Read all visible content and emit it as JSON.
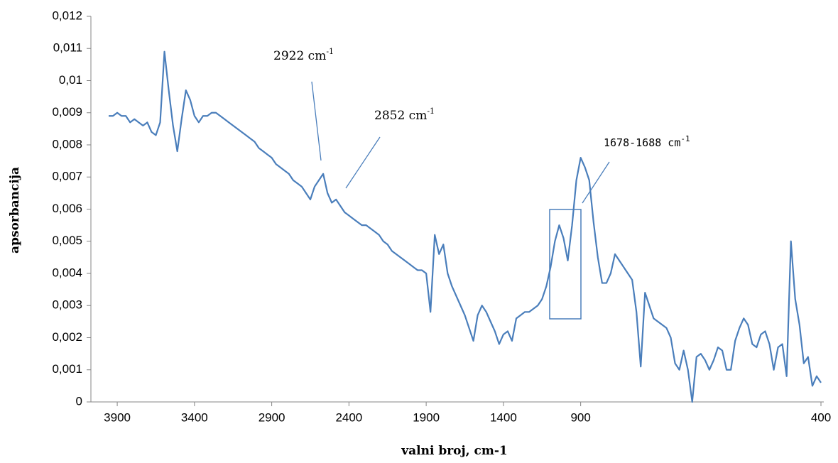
{
  "chart_data": {
    "type": "line",
    "xlabel": "valni broj, cm-1",
    "ylabel": "apsorbancija",
    "annotations": [
      {
        "text": "2922 cm",
        "sup": "-1"
      },
      {
        "text": "2852 cm",
        "sup": "-1"
      },
      {
        "text": "1678-1688 cm",
        "sup": "-1"
      }
    ],
    "categories": [
      null,
      null,
      "3900",
      null,
      null,
      null,
      null,
      null,
      null,
      null,
      null,
      null,
      null,
      null,
      null,
      null,
      null,
      null,
      null,
      null,
      "3400",
      null,
      null,
      null,
      null,
      null,
      null,
      null,
      null,
      null,
      null,
      null,
      null,
      null,
      null,
      null,
      null,
      null,
      "2900",
      null,
      null,
      null,
      null,
      null,
      null,
      null,
      null,
      null,
      null,
      null,
      null,
      null,
      null,
      null,
      null,
      null,
      "2400",
      null,
      null,
      null,
      null,
      null,
      null,
      null,
      null,
      null,
      null,
      null,
      null,
      null,
      null,
      null,
      null,
      null,
      "1900",
      null,
      null,
      null,
      null,
      null,
      null,
      null,
      null,
      null,
      null,
      null,
      null,
      null,
      null,
      null,
      null,
      null,
      "1400",
      null,
      null,
      null,
      null,
      null,
      null,
      null,
      null,
      null,
      null,
      null,
      null,
      null,
      null,
      null,
      null,
      null,
      "900",
      null,
      null,
      null,
      null,
      null,
      null,
      null,
      null,
      null,
      null,
      null,
      null,
      null,
      null,
      null,
      null,
      null,
      null,
      null,
      null,
      null,
      null,
      null,
      null,
      null,
      null,
      null,
      null,
      null,
      null,
      null,
      null,
      null,
      null,
      null,
      null,
      null,
      null,
      null,
      null,
      null,
      null,
      null,
      null,
      null,
      null,
      null,
      null,
      null,
      null,
      null,
      null,
      null,
      null,
      null,
      "400"
    ],
    "series": [
      {
        "name": "apsorbancija",
        "color": "#4a7ebb",
        "values": [
          0.0089,
          0.0089,
          0.009,
          0.0089,
          0.0089,
          0.0087,
          0.0088,
          0.0087,
          0.0086,
          0.0087,
          0.0084,
          0.0083,
          0.0087,
          0.0109,
          0.0097,
          0.0086,
          0.0078,
          0.0088,
          0.0097,
          0.0094,
          0.0089,
          0.0087,
          0.0089,
          0.0089,
          0.009,
          0.009,
          0.0089,
          0.0088,
          0.0087,
          0.0086,
          0.0085,
          0.0084,
          0.0083,
          0.0082,
          0.0081,
          0.0079,
          0.0078,
          0.0077,
          0.0076,
          0.0074,
          0.0073,
          0.0072,
          0.0071,
          0.0069,
          0.0068,
          0.0067,
          0.0065,
          0.0063,
          0.0067,
          0.0069,
          0.0071,
          0.0065,
          0.0062,
          0.0063,
          0.0061,
          0.0059,
          0.0058,
          0.0057,
          0.0056,
          0.0055,
          0.0055,
          0.0054,
          0.0053,
          0.0052,
          0.005,
          0.0049,
          0.0047,
          0.0046,
          0.0045,
          0.0044,
          0.0043,
          0.0042,
          0.0041,
          0.0041,
          0.004,
          0.0028,
          0.0052,
          0.0046,
          0.0049,
          0.004,
          0.0036,
          0.0033,
          0.003,
          0.0027,
          0.0023,
          0.0019,
          0.0027,
          0.003,
          0.0028,
          0.0025,
          0.0022,
          0.0018,
          0.0021,
          0.0022,
          0.0019,
          0.0026,
          0.0027,
          0.0028,
          0.0028,
          0.0029,
          0.003,
          0.0032,
          0.0036,
          0.0042,
          0.005,
          0.0055,
          0.0051,
          0.0044,
          0.0055,
          0.0069,
          0.0076,
          0.0073,
          0.0069,
          0.0056,
          0.0045,
          0.0037,
          0.0037,
          0.004,
          0.0046,
          0.0044,
          0.0042,
          0.004,
          0.0038,
          0.0028,
          0.0011,
          0.0034,
          0.003,
          0.0026,
          0.0025,
          0.0024,
          0.0023,
          0.002,
          0.0012,
          0.001,
          0.0016,
          0.001,
          0.0,
          0.0014,
          0.0015,
          0.0013,
          0.001,
          0.0013,
          0.0017,
          0.0016,
          0.001,
          0.001,
          0.0019,
          0.0023,
          0.0026,
          0.0024,
          0.0018,
          0.0017,
          0.0021,
          0.0022,
          0.0018,
          0.001,
          0.0017,
          0.0018,
          0.0008,
          0.005,
          0.0032,
          0.0024,
          0.0012,
          0.0014,
          0.0005,
          0.0008,
          0.0006
        ]
      }
    ],
    "ylim": [
      0,
      0.012
    ],
    "yticks": [
      0,
      {
        "value": 0.001,
        "label": "0,001"
      },
      {
        "value": 0.002,
        "label": "0,002"
      },
      {
        "value": 0.003,
        "label": "0,003"
      },
      {
        "value": 0.004,
        "label": "0,004"
      },
      {
        "value": 0.005,
        "label": "0,005"
      },
      {
        "value": 0.006,
        "label": "0,006"
      },
      {
        "value": 0.007,
        "label": "0,007"
      },
      {
        "value": 0.008,
        "label": "0,008"
      },
      {
        "value": 0.009,
        "label": "0,009"
      },
      {
        "value": 0.01,
        "label": "0,01"
      },
      {
        "value": 0.011,
        "label": "0,011"
      },
      {
        "value": 0.012,
        "label": "0,012"
      }
    ],
    "grid": false
  }
}
